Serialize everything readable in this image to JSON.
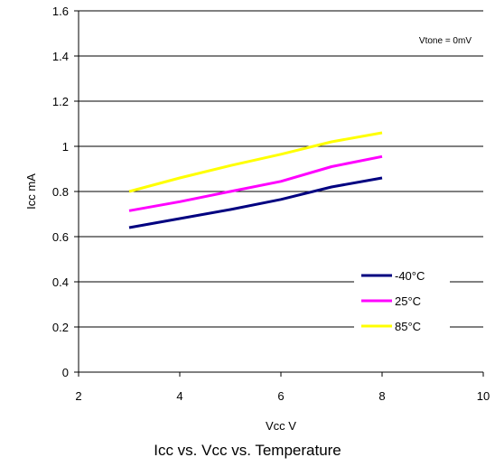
{
  "chart_data": {
    "type": "line",
    "annotation": "Vtone = 0mV",
    "xlabel": "Vcc V",
    "ylabel": "Icc mA",
    "xlim": [
      2,
      10
    ],
    "ylim": [
      0,
      1.6
    ],
    "xticks": [
      "2",
      "4",
      "6",
      "8",
      "10"
    ],
    "yticks": [
      "0",
      "0.2",
      "0.4",
      "0.6",
      "0.8",
      "1",
      "1.2",
      "1.4",
      "1.6"
    ],
    "grid": "horizontal",
    "legend_position": "bottom-right",
    "series": [
      {
        "name": "-40°C",
        "color": "#000080",
        "x": [
          3,
          4,
          5,
          6,
          7,
          8
        ],
        "y": [
          0.64,
          0.68,
          0.72,
          0.765,
          0.82,
          0.86
        ]
      },
      {
        "name": "25°C",
        "color": "#ff00ff",
        "x": [
          3,
          4,
          5,
          6,
          7,
          8
        ],
        "y": [
          0.715,
          0.755,
          0.8,
          0.845,
          0.91,
          0.955
        ]
      },
      {
        "name": "85°C",
        "color": "#ffff00",
        "x": [
          3,
          4,
          5,
          6,
          7,
          8
        ],
        "y": [
          0.8,
          0.86,
          0.915,
          0.965,
          1.02,
          1.06
        ]
      }
    ]
  },
  "caption": "Icc vs. Vcc vs. Temperature"
}
